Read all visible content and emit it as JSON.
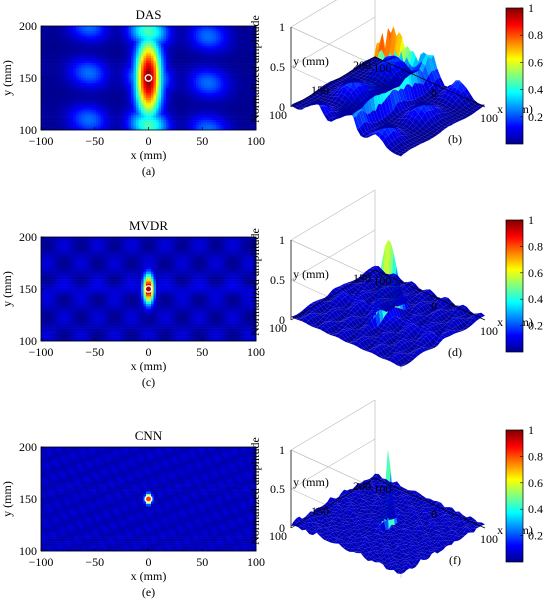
{
  "figure": {
    "colors": {
      "jet": [
        "#00008f",
        "#0000ff",
        "#0080ff",
        "#00ffff",
        "#80ff80",
        "#ffff00",
        "#ff8000",
        "#ff0000",
        "#800000"
      ],
      "background": "#ffffff",
      "axis": "#000000",
      "grid3d": "#bdbdbd"
    },
    "panels": [
      {
        "id": "a",
        "sub_label": "(a)",
        "chart_data": {
          "type": "heatmap",
          "title": "DAS",
          "xlabel": "x (mm)",
          "ylabel": "y (mm)",
          "xlim": [
            -100,
            100
          ],
          "ylim": [
            100,
            200
          ],
          "xticks": [
            "-100",
            "-50",
            "0",
            "50",
            "100"
          ],
          "yticks": [
            "100",
            "150",
            "200"
          ],
          "target": {
            "x": 0,
            "y": 150
          },
          "peak_amplitude": 1,
          "sidelobe_level": 0.45,
          "mainlobe_width_mm": [
            12,
            38
          ]
        }
      },
      {
        "id": "b",
        "sub_label": "(b)",
        "chart_data": {
          "type": "surface",
          "zlabel": "Normalized amplitude",
          "xlabel": "x (mm)",
          "ylabel": "y (mm)",
          "xticks": [
            "-100",
            "0",
            "100"
          ],
          "yticks": [
            "100",
            "150",
            "200"
          ],
          "zticks": [
            "0",
            "0.5",
            "1"
          ],
          "zlim": [
            0,
            1
          ],
          "peak": {
            "x": 0,
            "y": 150,
            "z": 1
          },
          "colorbar": {
            "ticks": [
              "0.2",
              "0.4",
              "0.6",
              "0.8",
              "1"
            ],
            "range": [
              0,
              1
            ]
          }
        }
      },
      {
        "id": "c",
        "sub_label": "(c)",
        "chart_data": {
          "type": "heatmap",
          "title": "MVDR",
          "xlabel": "x (mm)",
          "ylabel": "y (mm)",
          "xlim": [
            -100,
            100
          ],
          "ylim": [
            100,
            200
          ],
          "xticks": [
            "-100",
            "-50",
            "0",
            "50",
            "100"
          ],
          "yticks": [
            "100",
            "150",
            "200"
          ],
          "target": {
            "x": 0,
            "y": 150
          },
          "peak_amplitude": 1,
          "sidelobe_level": 0.12,
          "mainlobe_width_mm": [
            5,
            14
          ]
        }
      },
      {
        "id": "d",
        "sub_label": "(d)",
        "chart_data": {
          "type": "surface",
          "zlabel": "Normalized amplitude",
          "xlabel": "x (mm)",
          "ylabel": "y (mm)",
          "xticks": [
            "-100",
            "0",
            "100"
          ],
          "yticks": [
            "100",
            "150"
          ],
          "zticks": [
            "0",
            "0.5",
            "1"
          ],
          "zlim": [
            0,
            1
          ],
          "peak": {
            "x": 0,
            "y": 150,
            "z": 1
          },
          "colorbar": {
            "ticks": [
              "0.2",
              "0.4",
              "0.6",
              "0.8",
              "1"
            ],
            "range": [
              0,
              1
            ]
          }
        }
      },
      {
        "id": "e",
        "sub_label": "(e)",
        "chart_data": {
          "type": "heatmap",
          "title": "CNN",
          "xlabel": "x (mm)",
          "ylabel": "y (mm)",
          "xlim": [
            -100,
            100
          ],
          "ylim": [
            100,
            200
          ],
          "xticks": [
            "-100",
            "-50",
            "0",
            "50",
            "100"
          ],
          "yticks": [
            "100",
            "150",
            "200"
          ],
          "target": {
            "x": 0,
            "y": 150
          },
          "peak_amplitude": 1,
          "sidelobe_level": 0.08,
          "mainlobe_width_mm": [
            3,
            5
          ]
        }
      },
      {
        "id": "f",
        "sub_label": "(f)",
        "chart_data": {
          "type": "surface",
          "zlabel": "Normalized amplitude",
          "xlabel": "x (mm)",
          "ylabel": "y (mm)",
          "xticks": [
            "-100",
            "0",
            "100"
          ],
          "yticks": [
            "100",
            "150",
            "200"
          ],
          "zticks": [
            "0",
            "0.5",
            "1"
          ],
          "zlim": [
            0,
            1
          ],
          "peak": {
            "x": 0,
            "y": 150,
            "z": 1
          },
          "colorbar": {
            "ticks": [
              "0.2",
              "0.4",
              "0.6",
              "0.8",
              "1"
            ],
            "range": [
              0,
              1
            ]
          }
        }
      }
    ]
  }
}
